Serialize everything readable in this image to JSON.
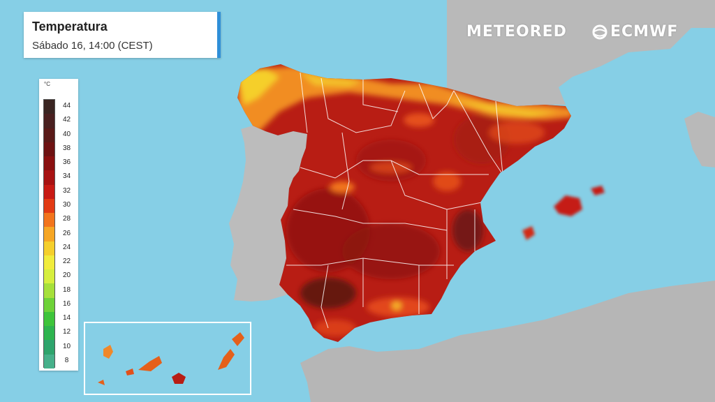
{
  "header": {
    "title": "Temperatura",
    "subtitle": "Sábado 16, 14:00 (CEST)"
  },
  "brands": {
    "meteored": "METEORED",
    "ecmwf": "ECMWF"
  },
  "legend": {
    "unit": "°C",
    "ticks": [
      "44",
      "42",
      "40",
      "38",
      "36",
      "34",
      "32",
      "30",
      "28",
      "26",
      "24",
      "22",
      "20",
      "18",
      "16",
      "14",
      "12",
      "10",
      "8"
    ],
    "colors": [
      "#3a2522",
      "#4a2020",
      "#5a1a18",
      "#6e1212",
      "#8a1010",
      "#a81212",
      "#c81a14",
      "#e23a14",
      "#f2741c",
      "#f6a624",
      "#f5cf2c",
      "#f1ec3c",
      "#d6ee3e",
      "#a6e03a",
      "#6ed238",
      "#3ec43a",
      "#2eb44e",
      "#2ea46c",
      "#46b08a"
    ]
  },
  "map": {
    "sea_color": "#86cfe6",
    "land_color": "#b9b9b9",
    "hot_color": "#b81d14"
  }
}
